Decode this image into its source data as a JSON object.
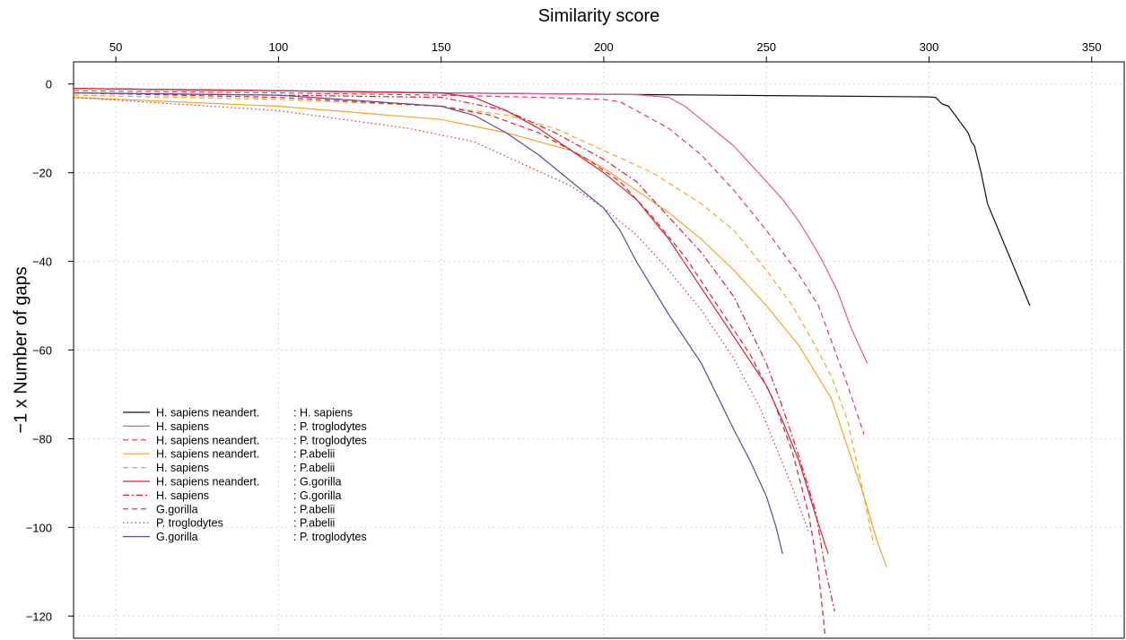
{
  "chart_data": {
    "type": "line",
    "xlabel": "Similarity score",
    "ylabel": "−1 x Number of gaps",
    "xlim": [
      37,
      360
    ],
    "ylim": [
      -125,
      5
    ],
    "x_ticks": [
      50,
      100,
      150,
      200,
      250,
      300,
      350
    ],
    "y_ticks": [
      0,
      -20,
      -40,
      -60,
      -80,
      -100,
      -120
    ],
    "x_axis_position": "top",
    "grid": true,
    "legend": "bottom-left",
    "series": [
      {
        "name": "H. sapiens neandert.",
        "name2": ": H. sapiens",
        "color": "#111111",
        "dash": "solid",
        "x": [
          37,
          100,
          150,
          200,
          250,
          300,
          302,
          304,
          306,
          308,
          310,
          312,
          313,
          314,
          316,
          318,
          331
        ],
        "y": [
          -1,
          -1.5,
          -2,
          -2.3,
          -2.6,
          -2.9,
          -3,
          -4.5,
          -5,
          -7,
          -9,
          -11,
          -13,
          -14,
          -20,
          -27,
          -50
        ]
      },
      {
        "name": "H. sapiens",
        "name2": ": P. troglodytes",
        "color": "#e8549a",
        "dash": "solid",
        "x": [
          37,
          100,
          150,
          200,
          210,
          220,
          225,
          230,
          235,
          240,
          245,
          250,
          255,
          260,
          265,
          268,
          272,
          276,
          281
        ],
        "y": [
          -1,
          -1.5,
          -2,
          -2.3,
          -2.4,
          -3,
          -5,
          -8,
          -11,
          -14,
          -18,
          -22,
          -26,
          -31,
          -37,
          -41,
          -47,
          -55,
          -63
        ]
      },
      {
        "name": "H. sapiens neandert.",
        "name2": ": P. troglodytes",
        "color": "#e8395a",
        "dash": "dash",
        "x": [
          37,
          100,
          150,
          180,
          200,
          205,
          210,
          220,
          230,
          240,
          250,
          260,
          266,
          270,
          275,
          280
        ],
        "y": [
          -1.5,
          -2,
          -2.5,
          -3,
          -3.5,
          -4,
          -6,
          -10,
          -16,
          -24,
          -33,
          -43,
          -50,
          -58,
          -68,
          -79
        ]
      },
      {
        "name": "H. sapiens neandert.",
        "name2": ": P.abelii",
        "color": "#f5a623",
        "dash": "solid",
        "x": [
          37,
          100,
          150,
          170,
          190,
          200,
          210,
          220,
          230,
          240,
          250,
          260,
          270,
          280,
          284,
          287
        ],
        "y": [
          -3,
          -5,
          -8,
          -11,
          -15,
          -19,
          -24,
          -29,
          -35,
          -42,
          -50,
          -59,
          -71,
          -93,
          -103,
          -109
        ]
      },
      {
        "name": "H. sapiens",
        "name2": ": P.abelii",
        "color": "#f5a623",
        "dash": "dash",
        "x": [
          37,
          100,
          150,
          170,
          185,
          200,
          215,
          230,
          240,
          250,
          258,
          265,
          270,
          275,
          280,
          283
        ],
        "y": [
          -2.5,
          -3.5,
          -5,
          -7,
          -10,
          -15,
          -20,
          -27,
          -33,
          -42,
          -50,
          -59,
          -66,
          -76,
          -93,
          -104
        ]
      },
      {
        "name": "H. sapiens neandert.",
        "name2": ": G.gorilla",
        "color": "#e01f2d",
        "dash": "solid",
        "x": [
          37,
          100,
          150,
          160,
          170,
          180,
          190,
          200,
          210,
          220,
          230,
          240,
          250,
          255,
          260,
          265,
          269
        ],
        "y": [
          -1,
          -1.5,
          -2,
          -3,
          -6,
          -10,
          -15,
          -20,
          -26,
          -35,
          -46,
          -57,
          -68,
          -76,
          -85,
          -97,
          -106
        ]
      },
      {
        "name": "H. sapiens",
        "name2": ": G.gorilla",
        "color": "#e01f2d",
        "dash": "dashdot",
        "x": [
          37,
          100,
          150,
          170,
          185,
          200,
          210,
          220,
          230,
          240,
          250,
          255,
          260,
          265,
          268,
          271
        ],
        "y": [
          -2,
          -2.5,
          -3,
          -6,
          -11,
          -17,
          -22,
          -30,
          -38,
          -48,
          -63,
          -73,
          -84,
          -96,
          -109,
          -119
        ]
      },
      {
        "name": "G.gorilla",
        "name2": ": P.abelii",
        "color": "#e01f2d",
        "dash": "dash",
        "x": [
          37,
          100,
          150,
          165,
          180,
          195,
          205,
          215,
          225,
          235,
          245,
          252,
          258,
          263,
          266,
          268
        ],
        "y": [
          -2,
          -3,
          -5,
          -7,
          -11,
          -17,
          -22,
          -30,
          -39,
          -50,
          -61,
          -71,
          -83,
          -97,
          -110,
          -124
        ]
      },
      {
        "name": "P. troglodytes",
        "name2": ": P.abelii",
        "color": "#e0303a",
        "dash": "dot",
        "x": [
          37,
          100,
          140,
          160,
          175,
          190,
          200,
          210,
          220,
          230,
          240,
          248,
          253,
          258,
          263
        ],
        "y": [
          -3,
          -6,
          -10,
          -13,
          -18,
          -23,
          -28,
          -34,
          -42,
          -51,
          -62,
          -73,
          -82,
          -91,
          -101
        ]
      },
      {
        "name": "G.gorilla",
        "name2": ": P. troglodytes",
        "color": "#5a4aa0",
        "dash": "solid",
        "x": [
          37,
          100,
          150,
          160,
          170,
          180,
          190,
          200,
          205,
          210,
          215,
          220,
          230,
          240,
          245,
          250,
          253,
          255
        ],
        "y": [
          -2,
          -2.5,
          -5,
          -7,
          -11,
          -16,
          -22,
          -28,
          -33,
          -40,
          -46,
          -52,
          -63,
          -78,
          -85,
          -93,
          -100,
          -106
        ]
      }
    ]
  }
}
